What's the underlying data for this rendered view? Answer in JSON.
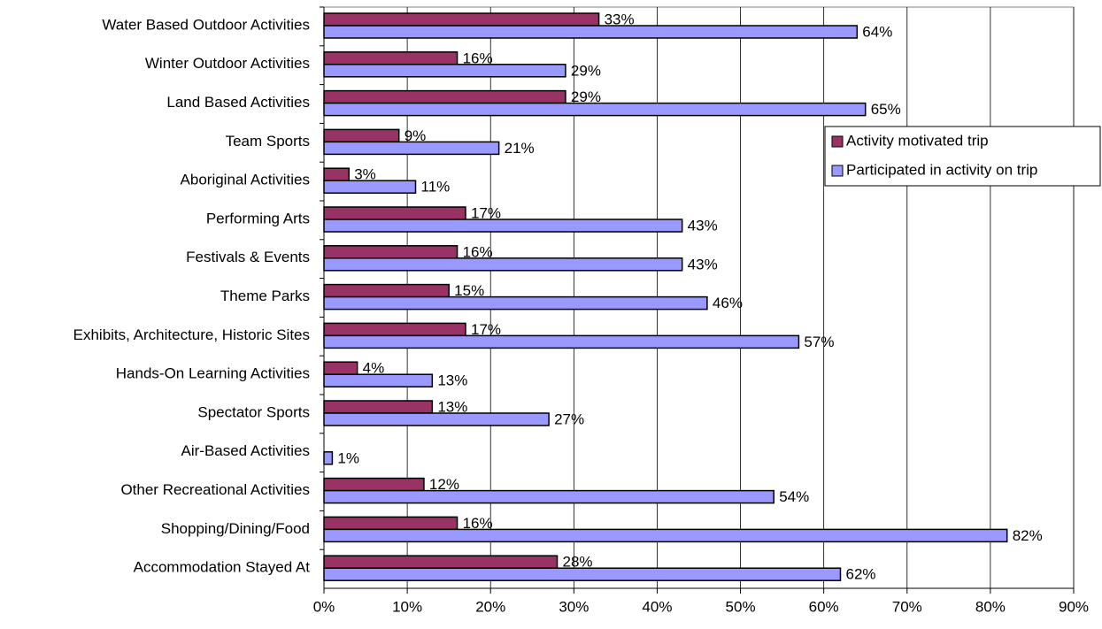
{
  "chart_data": {
    "type": "bar",
    "orientation": "horizontal",
    "categories": [
      "Water Based Outdoor Activities",
      "Winter Outdoor Activities",
      "Land Based Activities",
      "Team Sports",
      "Aboriginal Activities",
      "Performing Arts",
      "Festivals & Events",
      "Theme Parks",
      "Exhibits, Architecture, Historic Sites",
      "Hands-On Learning Activities",
      "Spectator Sports",
      "Air-Based Activities",
      "Other Recreational Activities",
      "Shopping/Dining/Food",
      "Accommodation Stayed At"
    ],
    "series": [
      {
        "name": "Activity motivated trip",
        "color": "#993366",
        "values": [
          33,
          16,
          29,
          9,
          3,
          17,
          16,
          15,
          17,
          4,
          13,
          null,
          12,
          16,
          28
        ],
        "value_labels": [
          "33%",
          "16%",
          "29%",
          "9%",
          "3%",
          "17%",
          "16%",
          "15%",
          "17%",
          "4%",
          "13%",
          null,
          "12%",
          "16%",
          "28%"
        ]
      },
      {
        "name": "Participated in activity on trip",
        "color": "#9999ff",
        "values": [
          64,
          29,
          65,
          21,
          11,
          43,
          43,
          46,
          57,
          13,
          27,
          1,
          54,
          82,
          62
        ],
        "value_labels": [
          "64%",
          "29%",
          "65%",
          "21%",
          "11%",
          "43%",
          "43%",
          "46%",
          "57%",
          "13%",
          "27%",
          "1%",
          "54%",
          "82%",
          "62%"
        ]
      }
    ],
    "xlim": [
      0,
      90
    ],
    "xticks": [
      {
        "value": 0,
        "label": "0%"
      },
      {
        "value": 10,
        "label": "10%"
      },
      {
        "value": 20,
        "label": "20%"
      },
      {
        "value": 30,
        "label": "30%"
      },
      {
        "value": 40,
        "label": "40%"
      },
      {
        "value": 50,
        "label": "50%"
      },
      {
        "value": 60,
        "label": "60%"
      },
      {
        "value": 70,
        "label": "70%"
      },
      {
        "value": 80,
        "label": "80%"
      },
      {
        "value": 90,
        "label": "90%"
      }
    ],
    "grid": true,
    "legend": "right"
  }
}
